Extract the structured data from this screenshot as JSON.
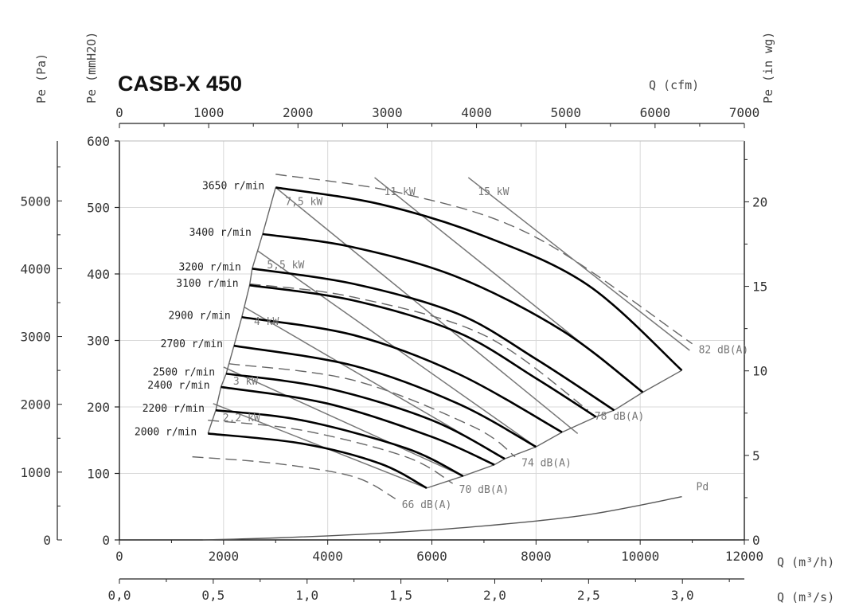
{
  "chart_data": {
    "type": "line",
    "title": "CASB-X  450",
    "axes": {
      "x_bottom": {
        "label": "Q (m³/h)",
        "range": [
          0,
          12000
        ],
        "ticks": [
          "0",
          "2000",
          "4000",
          "6000",
          "8000",
          "10000",
          "12000"
        ]
      },
      "x_bottom2": {
        "label": "Q (m³/s)",
        "range": [
          0,
          3.33
        ],
        "ticks": [
          "0,0",
          "0,5",
          "1,0",
          "1,5",
          "2,0",
          "2,5",
          "3,0"
        ]
      },
      "x_top": {
        "label": "Q (cfm)",
        "range": [
          0,
          7000
        ],
        "ticks": [
          "0",
          "1000",
          "2000",
          "3000",
          "4000",
          "5000",
          "6000",
          "7000"
        ]
      },
      "y_left_mmH2O": {
        "label": "Pe (mmH2O)",
        "range": [
          0,
          600
        ],
        "ticks": [
          "0",
          "100",
          "200",
          "300",
          "400",
          "500",
          "600"
        ]
      },
      "y_left_Pa": {
        "label": "Pe (Pa)",
        "range": [
          0,
          5884
        ],
        "ticks": [
          "0",
          "1000",
          "2000",
          "3000",
          "4000",
          "5000"
        ]
      },
      "y_right_inwg": {
        "label": "Pe (in wg)",
        "range": [
          0,
          23.6
        ],
        "ticks": [
          "0",
          "5",
          "10",
          "15",
          "20"
        ]
      }
    },
    "grid": true,
    "speed_curves": [
      {
        "name": "3650 r/min",
        "points": [
          [
            3000,
            530
          ],
          [
            5000,
            505
          ],
          [
            7000,
            457
          ],
          [
            9000,
            383
          ],
          [
            10800,
            255
          ]
        ]
      },
      {
        "name": "3400 r/min",
        "points": [
          [
            2750,
            460
          ],
          [
            4500,
            440
          ],
          [
            6500,
            395
          ],
          [
            8500,
            315
          ],
          [
            10050,
            222
          ]
        ]
      },
      {
        "name": "3200 r/min",
        "points": [
          [
            2550,
            408
          ],
          [
            4500,
            385
          ],
          [
            6500,
            340
          ],
          [
            8000,
            272
          ],
          [
            9500,
            195
          ]
        ]
      },
      {
        "name": "3100 r/min",
        "points": [
          [
            2500,
            383
          ],
          [
            4500,
            360
          ],
          [
            6500,
            312
          ],
          [
            8000,
            243
          ],
          [
            9150,
            185
          ]
        ]
      },
      {
        "name": "2900 r/min",
        "points": [
          [
            2350,
            335
          ],
          [
            4500,
            308
          ],
          [
            6500,
            250
          ],
          [
            8500,
            162
          ]
        ]
      },
      {
        "name": "2700 r/min",
        "points": [
          [
            2200,
            292
          ],
          [
            4500,
            262
          ],
          [
            6500,
            205
          ],
          [
            8000,
            140
          ]
        ]
      },
      {
        "name": "2500 r/min",
        "points": [
          [
            2050,
            250
          ],
          [
            4000,
            228
          ],
          [
            6000,
            180
          ],
          [
            7400,
            122
          ]
        ]
      },
      {
        "name": "2400 r/min",
        "points": [
          [
            1950,
            230
          ],
          [
            4000,
            205
          ],
          [
            6000,
            155
          ],
          [
            7200,
            113
          ]
        ]
      },
      {
        "name": "2200 r/min",
        "points": [
          [
            1850,
            195
          ],
          [
            3500,
            180
          ],
          [
            5500,
            138
          ],
          [
            6600,
            96
          ]
        ]
      },
      {
        "name": "2000 r/min",
        "points": [
          [
            1700,
            160
          ],
          [
            3500,
            145
          ],
          [
            5000,
            115
          ],
          [
            5900,
            78
          ]
        ]
      }
    ],
    "sound_levels": [
      {
        "name": "66 dB(A)",
        "points": [
          [
            1400,
            125
          ],
          [
            3000,
            115
          ],
          [
            4500,
            95
          ],
          [
            5300,
            62
          ]
        ]
      },
      {
        "name": "70 dB(A)",
        "points": [
          [
            1700,
            180
          ],
          [
            3500,
            165
          ],
          [
            5500,
            125
          ],
          [
            6400,
            85
          ]
        ]
      },
      {
        "name": "74 dB(A)",
        "points": [
          [
            2100,
            265
          ],
          [
            4500,
            240
          ],
          [
            6800,
            170
          ],
          [
            7600,
            125
          ]
        ]
      },
      {
        "name": "78 dB(A)",
        "points": [
          [
            2500,
            385
          ],
          [
            4500,
            365
          ],
          [
            7000,
            308
          ],
          [
            9000,
            195
          ]
        ]
      },
      {
        "name": "82 dB(A)",
        "points": [
          [
            3000,
            550
          ],
          [
            5500,
            520
          ],
          [
            8000,
            455
          ],
          [
            11000,
            295
          ]
        ]
      }
    ],
    "power_lines": [
      {
        "name": "2,2 kW",
        "points": [
          [
            1800,
            205
          ],
          [
            5900,
            78
          ]
        ]
      },
      {
        "name": "3 kW",
        "points": [
          [
            2000,
            260
          ],
          [
            6600,
            96
          ]
        ]
      },
      {
        "name": "4 kW",
        "points": [
          [
            2400,
            350
          ],
          [
            7400,
            122
          ]
        ]
      },
      {
        "name": "5,5 kW",
        "points": [
          [
            2650,
            435
          ],
          [
            8000,
            140
          ]
        ]
      },
      {
        "name": "7,5 kW",
        "points": [
          [
            3000,
            530
          ],
          [
            8800,
            160
          ]
        ]
      },
      {
        "name": "11 kW",
        "points": [
          [
            4900,
            545
          ],
          [
            10050,
            222
          ]
        ]
      },
      {
        "name": "15 kW",
        "points": [
          [
            6700,
            545
          ],
          [
            10950,
            285
          ]
        ]
      }
    ],
    "dynamic_pressure": {
      "name": "Pd",
      "points": [
        [
          1600,
          0
        ],
        [
          3000,
          3
        ],
        [
          5000,
          10
        ],
        [
          7000,
          21
        ],
        [
          9000,
          38
        ],
        [
          10800,
          65
        ]
      ]
    },
    "operating_limit": {
      "points": [
        [
          1700,
          160
        ],
        [
          1850,
          195
        ],
        [
          1950,
          230
        ],
        [
          2050,
          250
        ],
        [
          2200,
          292
        ],
        [
          2350,
          335
        ],
        [
          2500,
          383
        ],
        [
          2550,
          408
        ],
        [
          2750,
          460
        ],
        [
          3000,
          530
        ]
      ]
    }
  }
}
